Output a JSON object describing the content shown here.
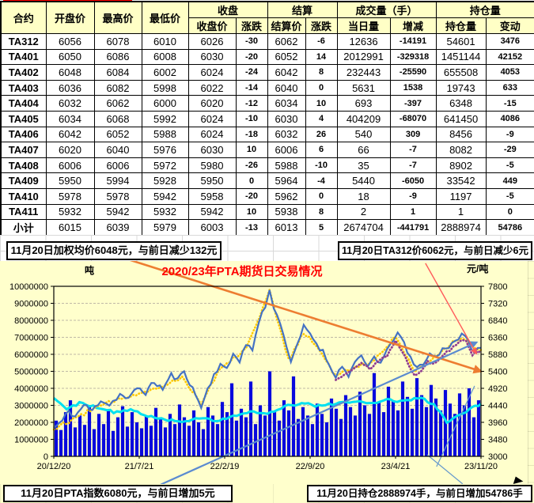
{
  "colors": {
    "positive": "#E60000",
    "negative": "#0070C0",
    "header_bg": "#FFFFC6",
    "chart_bg": "#FFFFCC"
  },
  "table": {
    "top_headers": [
      "合约",
      "开盘价",
      "最高价",
      "最低价",
      "收盘",
      "结算",
      "成交量（手）",
      "持仓量"
    ],
    "sub_headers": [
      "收盘价",
      "涨跌",
      "结算价",
      "涨跌",
      "当日量",
      "增减",
      "持仓量",
      "变动"
    ],
    "rows": [
      [
        "TA312",
        6056,
        6078,
        6010,
        6026,
        -30,
        6062,
        -6,
        12636,
        -14191,
        54601,
        3476
      ],
      [
        "TA401",
        6050,
        6086,
        6008,
        6030,
        -20,
        6052,
        14,
        2012991,
        -329318,
        1451144,
        42152
      ],
      [
        "TA402",
        6048,
        6084,
        6002,
        6024,
        -24,
        6042,
        8,
        232443,
        -25590,
        655508,
        4053
      ],
      [
        "TA403",
        6036,
        6082,
        5998,
        6022,
        -14,
        6040,
        0,
        5631,
        1538,
        19743,
        633
      ],
      [
        "TA404",
        6032,
        6062,
        6000,
        6020,
        -12,
        6034,
        10,
        693,
        -397,
        6348,
        -15
      ],
      [
        "TA405",
        6034,
        6068,
        5992,
        6024,
        -10,
        6030,
        4,
        404209,
        -68070,
        641450,
        4086
      ],
      [
        "TA406",
        6042,
        6052,
        5988,
        6024,
        -18,
        6032,
        26,
        540,
        309,
        8456,
        -9
      ],
      [
        "TA407",
        6020,
        6040,
        5976,
        6030,
        10,
        6006,
        6,
        66,
        -7,
        8082,
        -29
      ],
      [
        "TA408",
        6006,
        6006,
        5972,
        5980,
        -26,
        5988,
        -10,
        35,
        -7,
        8902,
        -5
      ],
      [
        "TA409",
        5950,
        5994,
        5928,
        5950,
        0,
        5964,
        -4,
        5440,
        -6050,
        33542,
        449
      ],
      [
        "TA410",
        5978,
        5978,
        5942,
        5958,
        -20,
        5962,
        0,
        18,
        -9,
        1197,
        -5
      ],
      [
        "TA411",
        5932,
        5942,
        5932,
        5942,
        10,
        5938,
        8,
        2,
        1,
        1,
        0
      ],
      [
        "小计",
        6015,
        6039,
        5979,
        6003,
        -13,
        6013,
        5,
        2674704,
        -441791,
        2888974,
        54786
      ]
    ]
  },
  "banners": {
    "top_left": "11月20日加权均价6048元，与前日减少132元",
    "top_right": "11月20日TA312价6062元，与前日减少6元",
    "bottom_left": "11月20日PTA指数6080元，与前日增加5元",
    "bottom_right": "11月20日持仓2888974手，与前日增加54786手"
  },
  "chart_data": {
    "type": "line+bar",
    "title": "2020/23年PTA期货日交易情况",
    "left_axis": {
      "label": "吨",
      "min": 0,
      "max": 10000000,
      "step": 1000000
    },
    "right_axis": {
      "label": "元/吨",
      "min": 3000,
      "max": 7800,
      "step": 480
    },
    "x_labels": [
      "20/12/20",
      "21/7/21",
      "22/2/19",
      "22/9/20",
      "23/4/21",
      "23/11/20"
    ],
    "grid": "horizontal-dashed",
    "legend": "none",
    "volume_bars": {
      "name": "volume-bars",
      "axis": "left",
      "color": "#0909DD",
      "values": [
        2100000,
        1550000,
        2600000,
        3300000,
        1700000,
        2400000,
        1850000,
        2900000,
        1600000,
        2500000,
        1900000,
        2750000,
        1500000,
        2300000,
        2950000,
        1750000,
        2600000,
        2000000,
        1650000,
        2400000,
        1800000,
        2850000,
        2200000,
        1700000,
        2500000,
        1900000,
        3050000,
        2300000,
        1800000,
        2700000,
        2000000,
        1600000,
        2900000,
        2400000,
        1900000,
        3200000,
        2600000,
        4300000,
        2100000,
        2800000,
        2300000,
        4400000,
        1900000,
        3000000,
        2400000,
        5000000,
        2600000,
        2100000,
        3300000,
        2700000,
        4700000,
        2200000,
        2900000,
        2400000,
        1900000,
        3100000,
        2500000,
        2000000,
        3400000,
        2800000,
        2200000,
        3600000,
        2900000,
        2400000,
        3800000,
        3000000,
        2500000,
        4900000,
        3200000,
        2600000,
        4100000,
        3300000,
        2700000,
        4400000,
        3500000,
        2800000,
        4600000,
        3600000,
        2900000,
        4200000,
        3400000,
        2700000,
        3900000,
        3100000,
        2500000,
        3700000,
        3000000,
        4000000,
        2300000,
        3300000
      ]
    },
    "lines": [
      {
        "name": "price-line-blue",
        "axis": "right",
        "color": "#4472C4",
        "width": 2.2,
        "dotted": false,
        "seed": 11,
        "jitter": 150,
        "points": [
          [
            0,
            3800
          ],
          [
            0.02,
            4000
          ],
          [
            0.035,
            4280
          ],
          [
            0.05,
            4120
          ],
          [
            0.07,
            4450
          ],
          [
            0.09,
            4280
          ],
          [
            0.11,
            4600
          ],
          [
            0.13,
            4450
          ],
          [
            0.155,
            4750
          ],
          [
            0.175,
            4600
          ],
          [
            0.195,
            4950
          ],
          [
            0.215,
            4800
          ],
          [
            0.235,
            5100
          ],
          [
            0.255,
            4900
          ],
          [
            0.275,
            5300
          ],
          [
            0.29,
            5150
          ],
          [
            0.305,
            5420
          ],
          [
            0.325,
            4900
          ],
          [
            0.345,
            4400
          ],
          [
            0.36,
            4880
          ],
          [
            0.375,
            5300
          ],
          [
            0.39,
            5620
          ],
          [
            0.405,
            5420
          ],
          [
            0.42,
            5900
          ],
          [
            0.435,
            5720
          ],
          [
            0.45,
            6150
          ],
          [
            0.465,
            6020
          ],
          [
            0.48,
            6800
          ],
          [
            0.495,
            7250
          ],
          [
            0.505,
            7750
          ],
          [
            0.515,
            7150
          ],
          [
            0.53,
            6800
          ],
          [
            0.545,
            6100
          ],
          [
            0.555,
            5600
          ],
          [
            0.57,
            6150
          ],
          [
            0.585,
            6650
          ],
          [
            0.6,
            6480
          ],
          [
            0.615,
            6180
          ],
          [
            0.63,
            5950
          ],
          [
            0.645,
            5580
          ],
          [
            0.66,
            5280
          ],
          [
            0.675,
            5520
          ],
          [
            0.69,
            5300
          ],
          [
            0.705,
            5650
          ],
          [
            0.72,
            5780
          ],
          [
            0.735,
            5520
          ],
          [
            0.75,
            5820
          ],
          [
            0.765,
            5620
          ],
          [
            0.78,
            5950
          ],
          [
            0.795,
            6320
          ],
          [
            0.805,
            6550
          ],
          [
            0.82,
            6150
          ],
          [
            0.835,
            5750
          ],
          [
            0.85,
            5480
          ],
          [
            0.865,
            5650
          ],
          [
            0.88,
            5880
          ],
          [
            0.895,
            5800
          ],
          [
            0.91,
            6020
          ],
          [
            0.925,
            6120
          ],
          [
            0.94,
            6280
          ],
          [
            0.955,
            6420
          ],
          [
            0.97,
            6250
          ],
          [
            0.985,
            5950
          ],
          [
            1,
            6060
          ]
        ]
      },
      {
        "name": "avg-line-yellow",
        "axis": "right",
        "color": "#FFC800",
        "width": 2.6,
        "dotted": true,
        "seed": 12,
        "jitter": 110,
        "points": [
          [
            0,
            3780
          ],
          [
            0.05,
            4080
          ],
          [
            0.1,
            4380
          ],
          [
            0.15,
            4600
          ],
          [
            0.2,
            4800
          ],
          [
            0.25,
            4950
          ],
          [
            0.3,
            5250
          ],
          [
            0.345,
            4500
          ],
          [
            0.39,
            5500
          ],
          [
            0.45,
            6050
          ],
          [
            0.505,
            7650
          ],
          [
            0.55,
            5700
          ],
          [
            0.585,
            6500
          ],
          [
            0.62,
            6050
          ],
          [
            0.66,
            5250
          ],
          [
            0.7,
            5500
          ],
          [
            0.75,
            5700
          ],
          [
            0.8,
            6400
          ],
          [
            0.845,
            5400
          ],
          [
            0.9,
            5900
          ],
          [
            0.95,
            6350
          ],
          [
            1,
            6000
          ]
        ]
      },
      {
        "name": "second-line-purple",
        "axis": "right",
        "color": "#913D91",
        "width": 2.8,
        "dotted": true,
        "seed": 13,
        "jitter": 100,
        "points": [
          [
            0.66,
            5150
          ],
          [
            0.68,
            5350
          ],
          [
            0.7,
            5500
          ],
          [
            0.72,
            5600
          ],
          [
            0.74,
            5480
          ],
          [
            0.76,
            5700
          ],
          [
            0.78,
            5850
          ],
          [
            0.8,
            6250
          ],
          [
            0.815,
            6000
          ],
          [
            0.83,
            5600
          ],
          [
            0.845,
            5300
          ],
          [
            0.86,
            5450
          ],
          [
            0.875,
            5650
          ],
          [
            0.89,
            5600
          ],
          [
            0.905,
            5800
          ],
          [
            0.92,
            5950
          ],
          [
            0.935,
            6100
          ],
          [
            0.95,
            6280
          ],
          [
            0.965,
            6300
          ],
          [
            0.98,
            5880
          ],
          [
            1,
            6000
          ]
        ]
      },
      {
        "name": "spot-line-cyan",
        "axis": "right",
        "color": "#00E0F0",
        "width": 3,
        "dotted": false,
        "seed": 14,
        "jitter": 70,
        "points": [
          [
            0,
            4650
          ],
          [
            0.03,
            4350
          ],
          [
            0.06,
            4500
          ],
          [
            0.1,
            4400
          ],
          [
            0.14,
            4250
          ],
          [
            0.18,
            4300
          ],
          [
            0.22,
            4150
          ],
          [
            0.26,
            4050
          ],
          [
            0.3,
            3950
          ],
          [
            0.34,
            4100
          ],
          [
            0.38,
            4000
          ],
          [
            0.42,
            4150
          ],
          [
            0.46,
            4250
          ],
          [
            0.5,
            4200
          ],
          [
            0.54,
            4400
          ],
          [
            0.58,
            4500
          ],
          [
            0.62,
            4420
          ],
          [
            0.66,
            4480
          ],
          [
            0.7,
            4550
          ],
          [
            0.74,
            4500
          ],
          [
            0.78,
            4600
          ],
          [
            0.82,
            4550
          ],
          [
            0.86,
            4650
          ],
          [
            0.89,
            4450
          ],
          [
            0.92,
            3980
          ],
          [
            0.95,
            4150
          ],
          [
            0.98,
            4400
          ],
          [
            1,
            4480
          ]
        ]
      }
    ],
    "trendlines": [
      {
        "name": "trend-down-orange",
        "from": [
          0.15,
          8650
        ],
        "to": [
          1.0,
          5400
        ],
        "color": "#ED7D31",
        "width": 2.6,
        "arrow": true
      },
      {
        "name": "trend-up-blue",
        "from": [
          0.25,
          2200
        ],
        "to": [
          0.99,
          6220
        ],
        "color": "#5B8BD0",
        "width": 2.2,
        "arrow": true
      },
      {
        "name": "trend-steep-red",
        "from": [
          0.87,
          8450
        ],
        "to": [
          0.989,
          5900
        ],
        "color": "#FF5A5A",
        "width": 1.4,
        "arrow": true
      },
      {
        "name": "fan-up-thin-blue",
        "from": [
          0.896,
          2710
        ],
        "to": [
          0.985,
          4990
        ],
        "color": "#6699CC",
        "width": 1.2,
        "arrow": false
      },
      {
        "name": "fan-down-thin-blue",
        "from": [
          0.874,
          3045
        ],
        "to": [
          0.957,
          2220
        ],
        "color": "#6699CC",
        "width": 1.2,
        "arrow": false
      }
    ]
  }
}
